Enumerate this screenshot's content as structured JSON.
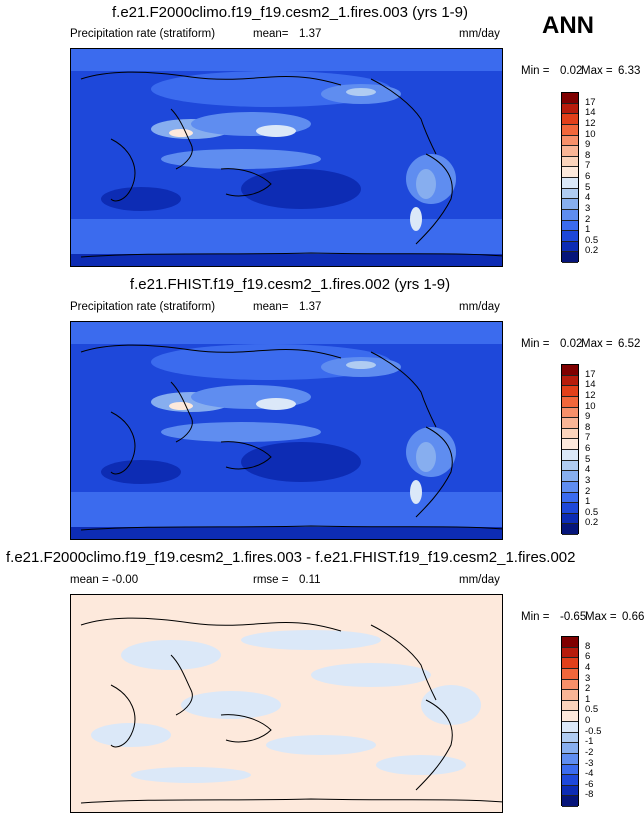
{
  "season": "ANN",
  "panels": [
    {
      "title": "f.e21.F2000climo.f19_f19.cesm2_1.fires.003 (yrs 1-9)",
      "left": "Precipitation rate (stratiform)",
      "middle_label": "mean=",
      "middle_value": "1.37",
      "right": "mm/day",
      "min_label": "Min =",
      "min_value": "0.02",
      "max_label": "Max =",
      "max_value": "6.33",
      "levels": [
        "17",
        "14",
        "12",
        "10",
        "9",
        "8",
        "7",
        "6",
        "5",
        "4",
        "3",
        "2",
        "1",
        "0.5",
        "0.2"
      ],
      "colors": [
        "#7f0000",
        "#b71c0c",
        "#e2401a",
        "#f2673b",
        "#f7906a",
        "#f9b596",
        "#fbd4bc",
        "#fde9dc",
        "#dbe8f8",
        "#b0ccf2",
        "#87aeef",
        "#5f8df0",
        "#3b6bee",
        "#1e48da",
        "#0d2cb4",
        "#06157a"
      ]
    },
    {
      "title": "f.e21.FHIST.f19_f19.cesm2_1.fires.002 (yrs 1-9)",
      "left": "Precipitation rate (stratiform)",
      "middle_label": "mean=",
      "middle_value": "1.37",
      "right": "mm/day",
      "min_label": "Min =",
      "min_value": "0.02",
      "max_label": "Max =",
      "max_value": "6.52",
      "levels": [
        "17",
        "14",
        "12",
        "10",
        "9",
        "8",
        "7",
        "6",
        "5",
        "4",
        "3",
        "2",
        "1",
        "0.5",
        "0.2"
      ],
      "colors": [
        "#7f0000",
        "#b71c0c",
        "#e2401a",
        "#f2673b",
        "#f7906a",
        "#f9b596",
        "#fbd4bc",
        "#fde9dc",
        "#dbe8f8",
        "#b0ccf2",
        "#87aeef",
        "#5f8df0",
        "#3b6bee",
        "#1e48da",
        "#0d2cb4",
        "#06157a"
      ]
    },
    {
      "title": "f.e21.F2000climo.f19_f19.cesm2_1.fires.003 - f.e21.FHIST.f19_f19.cesm2_1.fires.002",
      "left": "mean =  -0.00",
      "middle_label": "rmse =",
      "middle_value": "0.11",
      "right": "mm/day",
      "min_label": "Min =",
      "min_value": "-0.65",
      "max_label": "Max =",
      "max_value": "0.66",
      "levels": [
        "8",
        "6",
        "4",
        "3",
        "2",
        "1",
        "0.5",
        "0",
        "-0.5",
        "-1",
        "-2",
        "-3",
        "-4",
        "-6",
        "-8"
      ],
      "colors": [
        "#7f0000",
        "#b71c0c",
        "#e2401a",
        "#f2673b",
        "#f7906a",
        "#f9b596",
        "#fbd4bc",
        "#fde9dc",
        "#dbe8f8",
        "#b0ccf2",
        "#87aeef",
        "#5f8df0",
        "#3b6bee",
        "#1e48da",
        "#0d2cb4",
        "#06157a"
      ]
    }
  ],
  "chart_data": [
    {
      "type": "heatmap",
      "title": "f.e21.F2000climo.f19_f19.cesm2_1.fires.003 (yrs 1-9)",
      "variable": "Precipitation rate (stratiform)",
      "units": "mm/day",
      "mean": 1.37,
      "min": 0.02,
      "max": 6.33
    },
    {
      "type": "heatmap",
      "title": "f.e21.FHIST.f19_f19.cesm2_1.fires.002 (yrs 1-9)",
      "variable": "Precipitation rate (stratiform)",
      "units": "mm/day",
      "mean": 1.37,
      "min": 0.02,
      "max": 6.52
    },
    {
      "type": "heatmap",
      "title": "f.e21.F2000climo.f19_f19.cesm2_1.fires.003 - f.e21.FHIST.f19_f19.cesm2_1.fires.002",
      "units": "mm/day",
      "mean": -0.0,
      "rmse": 0.11,
      "min": -0.65,
      "max": 0.66
    }
  ]
}
